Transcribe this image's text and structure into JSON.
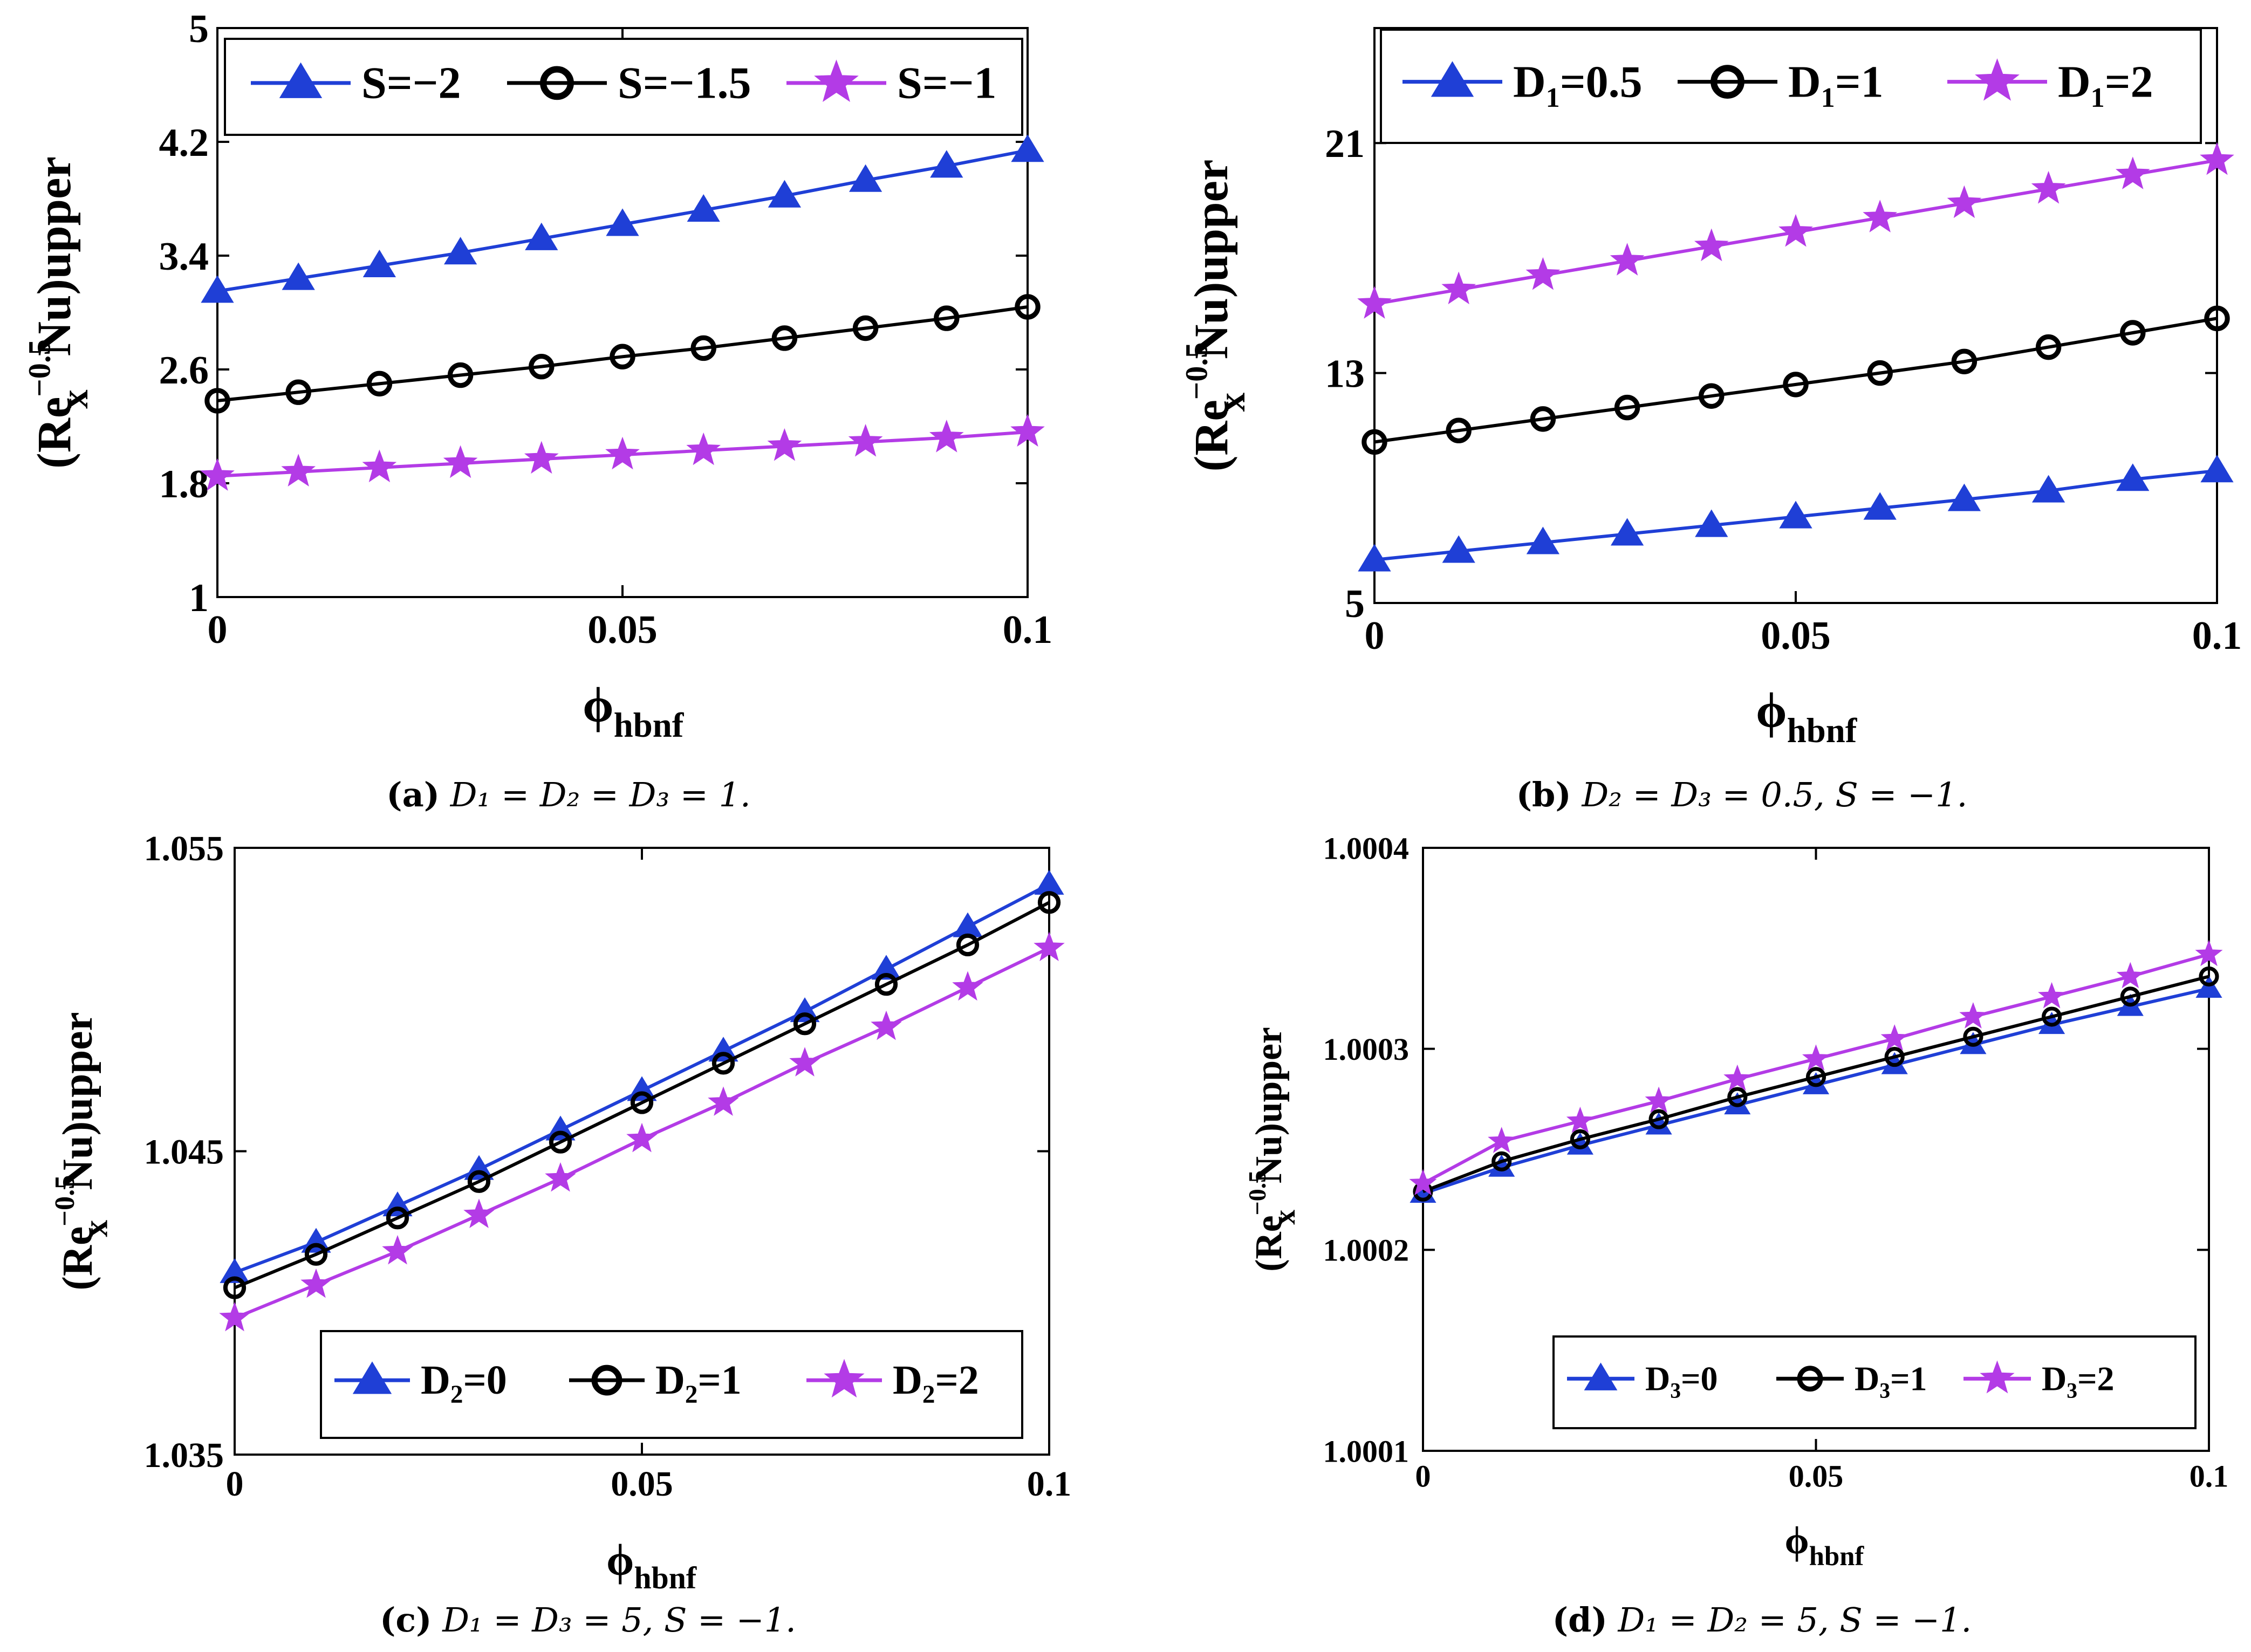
{
  "colors": {
    "blue": "#1f3fd6",
    "black": "#000000",
    "magenta": "#b33be6"
  },
  "chart_data": [
    {
      "id": "a",
      "type": "line",
      "title": "",
      "caption": {
        "tag": "(a)",
        "text": "D₁ = D₂ = D₃ = 1."
      },
      "xlabel": {
        "base": "ϕ",
        "sub": "hbnf"
      },
      "ylabel": {
        "pre": "(Re",
        "sub": "x",
        "sup": "−0.5",
        "post": "Nu)upper"
      },
      "xlim": [
        0,
        0.1
      ],
      "ylim": [
        1,
        5
      ],
      "xticks": [
        0,
        0.05,
        0.1
      ],
      "xtick_labels": [
        "0",
        "0.05",
        "0.1"
      ],
      "yticks": [
        1,
        1.8,
        2.6,
        3.4,
        4.2,
        5
      ],
      "ytick_labels": [
        "1",
        "1.8",
        "2.6",
        "3.4",
        "4.2",
        "5"
      ],
      "legend": "top",
      "x": [
        0,
        0.01,
        0.02,
        0.03,
        0.04,
        0.05,
        0.06,
        0.07,
        0.08,
        0.09,
        0.1
      ],
      "series": [
        {
          "name": "S=−2",
          "color": "blue",
          "marker": "triangle",
          "values": [
            3.15,
            3.24,
            3.33,
            3.42,
            3.52,
            3.62,
            3.72,
            3.82,
            3.93,
            4.03,
            4.14
          ]
        },
        {
          "name": "S=−1.5",
          "color": "black",
          "marker": "circle",
          "values": [
            2.38,
            2.44,
            2.5,
            2.56,
            2.62,
            2.69,
            2.75,
            2.82,
            2.89,
            2.96,
            3.04
          ]
        },
        {
          "name": "S=−1",
          "color": "magenta",
          "marker": "star",
          "values": [
            1.85,
            1.88,
            1.91,
            1.94,
            1.97,
            2.0,
            2.03,
            2.06,
            2.09,
            2.12,
            2.16
          ]
        }
      ]
    },
    {
      "id": "b",
      "type": "line",
      "title": "",
      "caption": {
        "tag": "(b)",
        "text": "D₂ = D₃ = 0.5,  S = −1."
      },
      "xlabel": {
        "base": "ϕ",
        "sub": "hbnf"
      },
      "ylabel": {
        "pre": "(Re",
        "sub": "x",
        "sup": "−0.5",
        "post": "Nu)upper"
      },
      "xlim": [
        0,
        0.1
      ],
      "ylim": [
        5,
        25
      ],
      "xticks": [
        0,
        0.05,
        0.1
      ],
      "xtick_labels": [
        "0",
        "0.05",
        "0.1"
      ],
      "yticks": [
        5,
        13,
        21
      ],
      "ytick_labels": [
        "5",
        "13",
        "21"
      ],
      "legend": "top",
      "x": [
        0,
        0.01,
        0.02,
        0.03,
        0.04,
        0.05,
        0.06,
        0.07,
        0.08,
        0.09,
        0.1
      ],
      "series": [
        {
          "name": "D₁=0.5",
          "color": "blue",
          "marker": "triangle",
          "values": [
            6.5,
            6.8,
            7.1,
            7.4,
            7.7,
            8.0,
            8.3,
            8.6,
            8.9,
            9.3,
            9.6
          ]
        },
        {
          "name": "D₁=1",
          "color": "black",
          "marker": "circle",
          "values": [
            10.6,
            11.0,
            11.4,
            11.8,
            12.2,
            12.6,
            13.0,
            13.4,
            13.9,
            14.4,
            14.9
          ]
        },
        {
          "name": "D₁=2",
          "color": "magenta",
          "marker": "star",
          "values": [
            15.4,
            15.9,
            16.4,
            16.9,
            17.4,
            17.9,
            18.4,
            18.9,
            19.4,
            19.9,
            20.4
          ]
        }
      ]
    },
    {
      "id": "c",
      "type": "line",
      "title": "",
      "caption": {
        "tag": "(c)",
        "text": "D₁ = D₃ = 5,  S = −1."
      },
      "xlabel": {
        "base": "ϕ",
        "sub": "hbnf"
      },
      "ylabel": {
        "pre": "(Re",
        "sub": "x",
        "sup": "−0.5",
        "post": "Nu)upper"
      },
      "xlim": [
        0,
        0.1
      ],
      "ylim": [
        1.035,
        1.055
      ],
      "xticks": [
        0,
        0.05,
        0.1
      ],
      "xtick_labels": [
        "0",
        "0.05",
        "0.1"
      ],
      "yticks": [
        1.035,
        1.045,
        1.055
      ],
      "ytick_labels": [
        "1.035",
        "1.045",
        "1.055"
      ],
      "legend": "bottom",
      "x": [
        0,
        0.01,
        0.02,
        0.03,
        0.04,
        0.05,
        0.06,
        0.07,
        0.08,
        0.09,
        0.1
      ],
      "series": [
        {
          "name": "D₂=0",
          "color": "blue",
          "marker": "triangle",
          "values": [
            1.041,
            1.042,
            1.0432,
            1.0444,
            1.0457,
            1.047,
            1.0483,
            1.0496,
            1.051,
            1.0524,
            1.0538
          ]
        },
        {
          "name": "D₂=1",
          "color": "black",
          "marker": "circle",
          "values": [
            1.0405,
            1.0416,
            1.0428,
            1.044,
            1.0453,
            1.0466,
            1.0479,
            1.0492,
            1.0505,
            1.0518,
            1.0532
          ]
        },
        {
          "name": "D₂=2",
          "color": "magenta",
          "marker": "star",
          "values": [
            1.0395,
            1.0406,
            1.0417,
            1.0429,
            1.0441,
            1.0454,
            1.0466,
            1.0479,
            1.0491,
            1.0504,
            1.0517
          ]
        }
      ]
    },
    {
      "id": "d",
      "type": "line",
      "title": "",
      "caption": {
        "tag": "(d)",
        "text": "D₁ = D₂ = 5,  S = −1."
      },
      "xlabel": {
        "base": "ϕ",
        "sub": "hbnf"
      },
      "ylabel": {
        "pre": "(Re",
        "sub": "x",
        "sup": "−0.5",
        "post": "Nu)upper"
      },
      "xlim": [
        0,
        0.1
      ],
      "ylim": [
        1.0001,
        1.0004
      ],
      "xticks": [
        0,
        0.05,
        0.1
      ],
      "xtick_labels": [
        "0",
        "0.05",
        "0.1"
      ],
      "yticks": [
        1.0001,
        1.0002,
        1.0003,
        1.0004
      ],
      "ytick_labels": [
        "1.0001",
        "1.0002",
        "1.0003",
        "1.0004"
      ],
      "legend": "bottom",
      "x": [
        0,
        0.01,
        0.02,
        0.03,
        0.04,
        0.05,
        0.06,
        0.07,
        0.08,
        0.09,
        0.1
      ],
      "series": [
        {
          "name": "D₃=0",
          "color": "blue",
          "marker": "triangle",
          "values": [
            1.000228,
            1.000241,
            1.000252,
            1.000262,
            1.000272,
            1.000282,
            1.000292,
            1.000302,
            1.000312,
            1.000321,
            1.00033
          ]
        },
        {
          "name": "D₃=1",
          "color": "black",
          "marker": "circle",
          "values": [
            1.000229,
            1.000244,
            1.000255,
            1.000265,
            1.000276,
            1.000286,
            1.000296,
            1.000306,
            1.000316,
            1.000326,
            1.000336
          ]
        },
        {
          "name": "D₃=2",
          "color": "magenta",
          "marker": "star",
          "values": [
            1.000233,
            1.000254,
            1.000264,
            1.000274,
            1.000285,
            1.000295,
            1.000305,
            1.000316,
            1.000326,
            1.000336,
            1.000347
          ]
        }
      ]
    }
  ]
}
